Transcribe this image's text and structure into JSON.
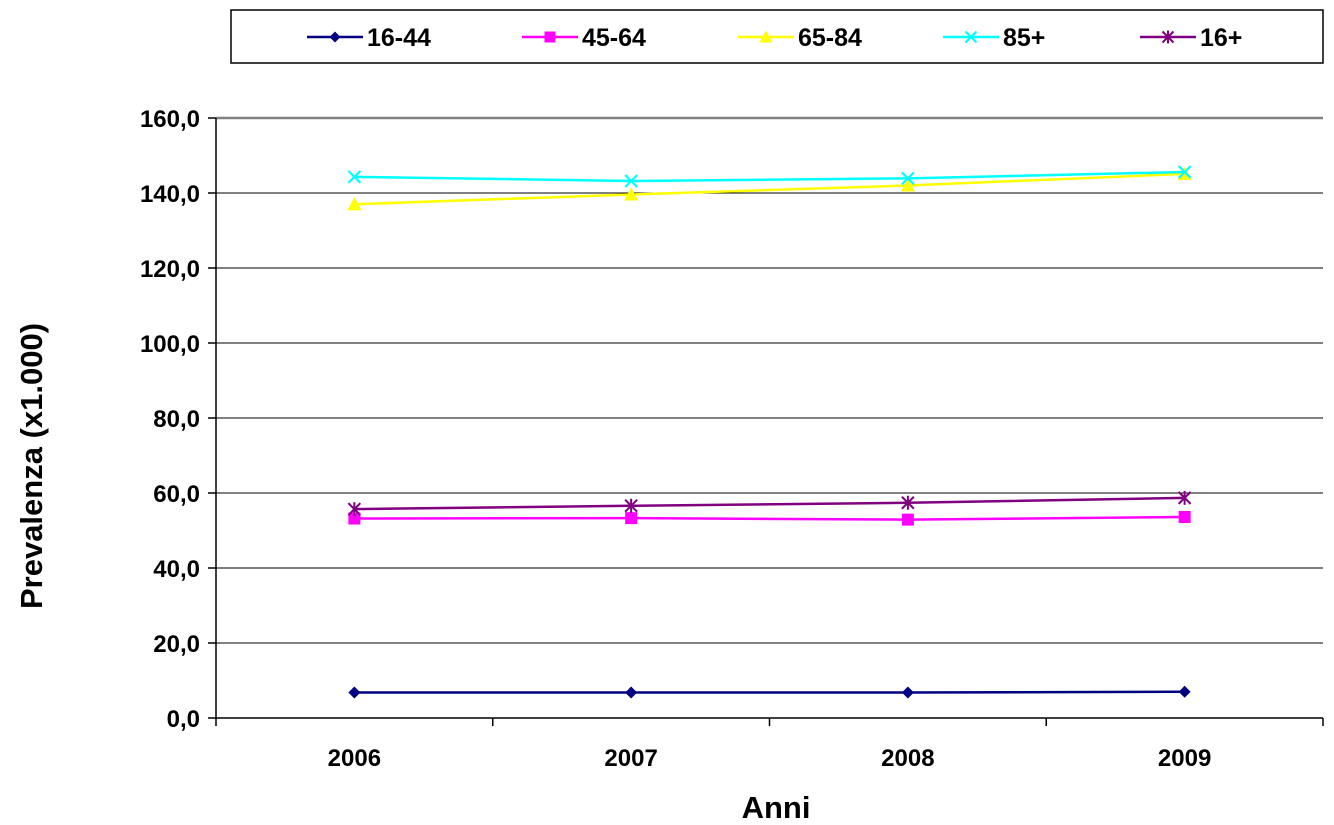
{
  "chart_data": {
    "type": "line",
    "categories": [
      "2006",
      "2007",
      "2008",
      "2009"
    ],
    "series": [
      {
        "name": "16-44",
        "values": [
          6.8,
          6.8,
          6.8,
          7.0
        ],
        "color": "#000080",
        "marker": "diamond"
      },
      {
        "name": "45-64",
        "values": [
          53.2,
          53.3,
          52.9,
          53.6
        ],
        "color": "#ff00ff",
        "marker": "square"
      },
      {
        "name": "65-84",
        "values": [
          137.0,
          139.6,
          142.0,
          145.1
        ],
        "color": "#ffff00",
        "marker": "triangle"
      },
      {
        "name": "85+",
        "values": [
          144.3,
          143.2,
          143.9,
          145.6
        ],
        "color": "#00ffff",
        "marker": "x"
      },
      {
        "name": "16+",
        "values": [
          55.7,
          56.6,
          57.4,
          58.7
        ],
        "color": "#800080",
        "marker": "star"
      }
    ],
    "xlabel": "Anni",
    "ylabel": "Prevalenza (x1.000)",
    "ylim": [
      0,
      160
    ],
    "ytick_step": 20,
    "ytick_labels": [
      "0,0",
      "20,0",
      "40,0",
      "60,0",
      "80,0",
      "100,0",
      "120,0",
      "140,0",
      "160,0"
    ],
    "grid": true,
    "legend": "top"
  }
}
